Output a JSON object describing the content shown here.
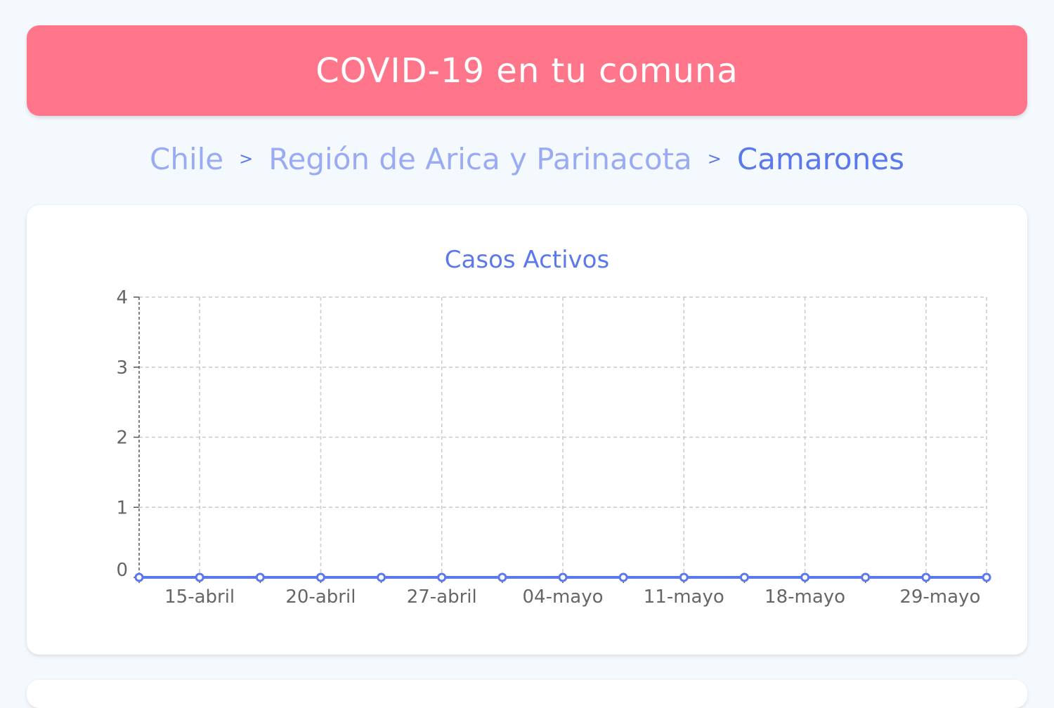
{
  "header": {
    "title": "COVID-19 en tu comuna"
  },
  "breadcrumb": {
    "items": [
      "Chile",
      "Región de Arica y Parinacota",
      "Camarones"
    ],
    "separator": ">"
  },
  "colors": {
    "header_bg": "#ff768b",
    "accent": "#5b78ec",
    "link": "#9aabf4"
  },
  "chart_data": {
    "type": "line",
    "title": "Casos Activos",
    "xlabel": "",
    "ylabel": "",
    "ylim": [
      0,
      4
    ],
    "yticks": [
      0,
      1,
      2,
      3,
      4
    ],
    "grid": true,
    "series_color": "#5b78ec",
    "x": [
      "",
      "15-abril",
      "",
      "20-abril",
      "",
      "27-abril",
      "",
      "04-mayo",
      "",
      "11-mayo",
      "",
      "18-mayo",
      "",
      "29-mayo",
      ""
    ],
    "series": [
      {
        "values": [
          0,
          0,
          0,
          0,
          0,
          0,
          0,
          0,
          0,
          0,
          0,
          0,
          0,
          0,
          0
        ]
      }
    ]
  }
}
